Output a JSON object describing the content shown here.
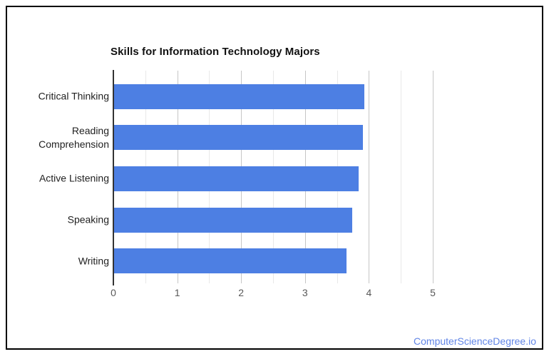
{
  "chart_data": {
    "type": "bar",
    "orientation": "horizontal",
    "title": "Skills for Information Technology Majors",
    "categories": [
      "Critical Thinking",
      "Reading Comprehension",
      "Active Listening",
      "Speaking",
      "Writing"
    ],
    "values": [
      3.92,
      3.89,
      3.83,
      3.73,
      3.64
    ],
    "xlabel": "",
    "ylabel": "",
    "xlim": [
      0,
      5
    ],
    "x_tick_labels": [
      "0",
      "1",
      "2",
      "3",
      "4",
      "5"
    ],
    "minor_gridline_step": 0.5,
    "grid": true,
    "legend": "none",
    "bar_color": "#4d7fe3",
    "axis_line_color": "#333333",
    "major_gridline_color": "#c6c6c6",
    "minor_gridline_color": "#e8e8e8",
    "tick_label_color": "#595959",
    "category_label_color": "#222222",
    "title_color": "#111111"
  },
  "watermark": {
    "text": "ComputerScienceDegree.io",
    "color": "#6185e6"
  }
}
